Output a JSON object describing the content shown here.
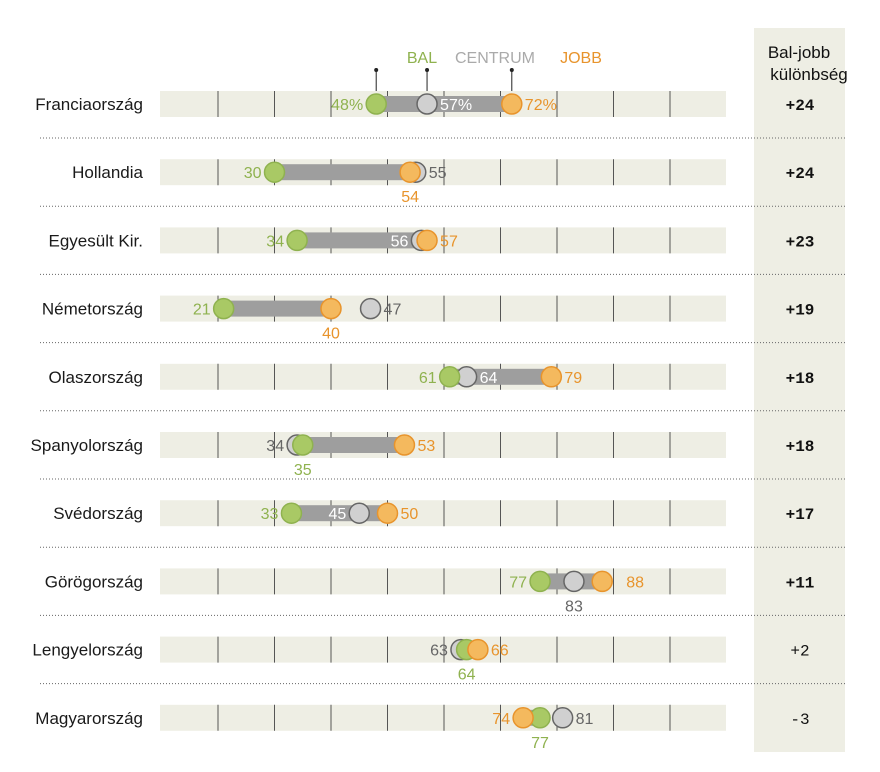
{
  "chart_data": {
    "type": "dot-range",
    "title": "",
    "xlim": [
      0,
      100
    ],
    "grid_step": 10,
    "legend": [
      {
        "key": "bal",
        "label": "BAL"
      },
      {
        "key": "centrum",
        "label": "CENTRUM"
      },
      {
        "key": "jobb",
        "label": "JOBB"
      }
    ],
    "diff_header": [
      "Bal-jobb",
      "különbség"
    ],
    "colors": {
      "bal": "#8fb24f",
      "bal_fill": "#a9c965",
      "centrum": "#666666",
      "centrum_fill": "#d0d0d0",
      "jobb": "#e8942c",
      "jobb_fill": "#f4b95e",
      "bar": "#9e9e9e",
      "track": "#eeeee4",
      "diff_bg": "#eeeee4"
    },
    "rows": [
      {
        "country": "Franciaország",
        "bal": 48,
        "centrum": 57,
        "jobb": 72,
        "bal_label": "48%",
        "centrum_label": "57%",
        "jobb_label": "72%",
        "diff": "+24",
        "bold": true
      },
      {
        "country": "Hollandia",
        "bal": 30,
        "centrum": 55,
        "jobb": 54,
        "bal_label": "30",
        "centrum_label": "55",
        "jobb_label": "54",
        "diff": "+24",
        "bold": true
      },
      {
        "country": "Egyesült Kir.",
        "bal": 34,
        "centrum": 56,
        "jobb": 57,
        "bal_label": "34",
        "centrum_label": "56",
        "jobb_label": "57",
        "diff": "+23",
        "bold": true
      },
      {
        "country": "Németország",
        "bal": 21,
        "centrum": 47,
        "jobb": 40,
        "bal_label": "21",
        "centrum_label": "47",
        "jobb_label": "40",
        "diff": "+19",
        "bold": true
      },
      {
        "country": "Olaszország",
        "bal": 61,
        "centrum": 64,
        "jobb": 79,
        "bal_label": "61",
        "centrum_label": "64",
        "jobb_label": "79",
        "diff": "+18",
        "bold": true
      },
      {
        "country": "Spanyolország",
        "bal": 35,
        "centrum": 34,
        "jobb": 53,
        "bal_label": "35",
        "centrum_label": "34",
        "jobb_label": "53",
        "diff": "+18",
        "bold": true
      },
      {
        "country": "Svédország",
        "bal": 33,
        "centrum": 45,
        "jobb": 50,
        "bal_label": "33",
        "centrum_label": "45",
        "jobb_label": "50",
        "diff": "+17",
        "bold": true
      },
      {
        "country": "Görögország",
        "bal": 77,
        "centrum": 83,
        "jobb": 88,
        "bal_label": "77",
        "centrum_label": "83",
        "jobb_label": "88",
        "diff": "+11",
        "bold": true
      },
      {
        "country": "Lengyelország",
        "bal": 64,
        "centrum": 63,
        "jobb": 66,
        "bal_label": "64",
        "centrum_label": "63",
        "jobb_label": "66",
        "diff": "+2",
        "bold": false
      },
      {
        "country": "Magyarország",
        "bal": 77,
        "centrum": 81,
        "jobb": 74,
        "bal_label": "77",
        "centrum_label": "81",
        "jobb_label": "74",
        "diff": "-3",
        "bold": false
      }
    ]
  }
}
